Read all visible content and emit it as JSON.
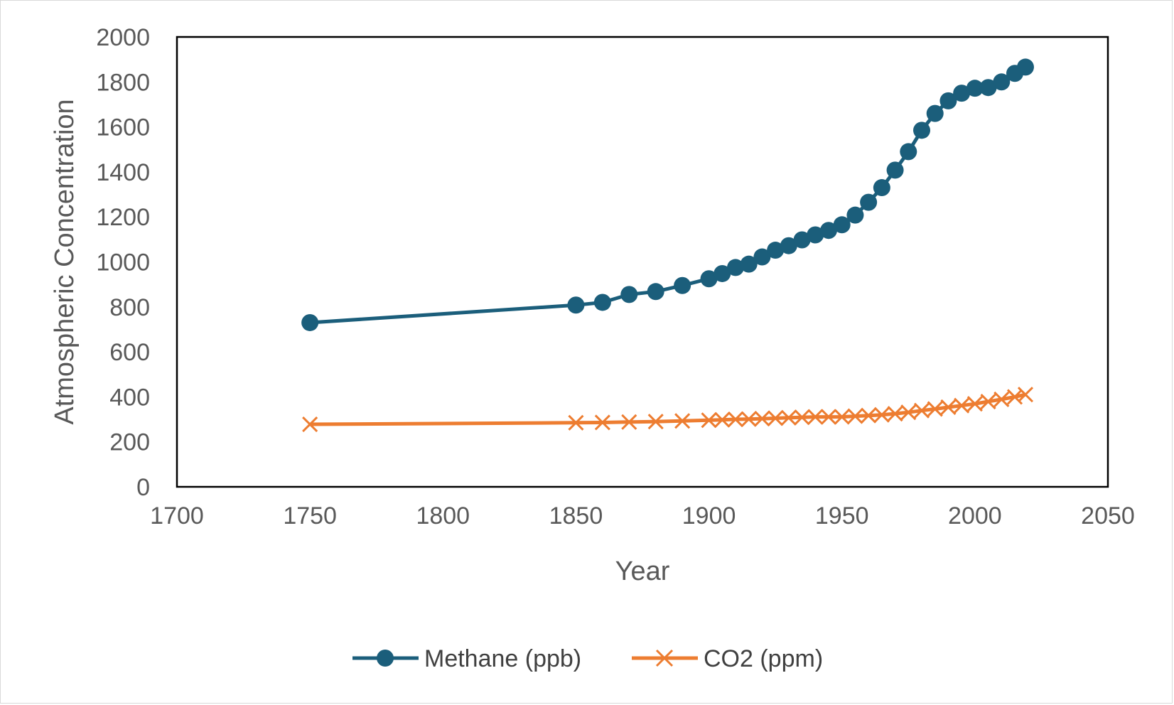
{
  "chart_data": {
    "type": "line",
    "title": "",
    "xlabel": "Year",
    "ylabel": "Atmospheric Concentration",
    "xlim": [
      1700,
      2050
    ],
    "ylim": [
      0,
      2000
    ],
    "xticks": [
      1700,
      1750,
      1800,
      1850,
      1900,
      1950,
      2000,
      2050
    ],
    "yticks": [
      0,
      200,
      400,
      600,
      800,
      1000,
      1200,
      1400,
      1600,
      1800,
      2000
    ],
    "grid": false,
    "legend_position": "bottom",
    "series": [
      {
        "name": "Methane (ppb)",
        "color": "#1b5e7b",
        "marker": "circle",
        "x": [
          1750,
          1850,
          1860,
          1870,
          1880,
          1890,
          1900,
          1905,
          1910,
          1915,
          1920,
          1925,
          1930,
          1935,
          1940,
          1945,
          1950,
          1955,
          1960,
          1965,
          1970,
          1975,
          1980,
          1985,
          1990,
          1995,
          2000,
          2005,
          2010,
          2015,
          2019
        ],
        "y": [
          730,
          808,
          820,
          855,
          868,
          895,
          925,
          948,
          975,
          990,
          1022,
          1052,
          1072,
          1098,
          1120,
          1140,
          1165,
          1208,
          1265,
          1330,
          1408,
          1490,
          1585,
          1660,
          1716,
          1750,
          1772,
          1775,
          1800,
          1838,
          1866
        ]
      },
      {
        "name": "CO2 (ppm)",
        "color": "#ed7d31",
        "marker": "x",
        "x": [
          1750,
          1850,
          1860,
          1870,
          1880,
          1890,
          1900,
          1905,
          1910,
          1915,
          1920,
          1925,
          1930,
          1935,
          1940,
          1945,
          1950,
          1955,
          1960,
          1965,
          1970,
          1975,
          1980,
          1985,
          1990,
          1995,
          2000,
          2005,
          2010,
          2015,
          2019
        ],
        "y": [
          278,
          285,
          286,
          288,
          290,
          293,
          296,
          298,
          300,
          301,
          303,
          305,
          307,
          309,
          311,
          311,
          311,
          314,
          317,
          320,
          325,
          331,
          339,
          346,
          354,
          361,
          369,
          379,
          389,
          400,
          410
        ]
      }
    ]
  }
}
